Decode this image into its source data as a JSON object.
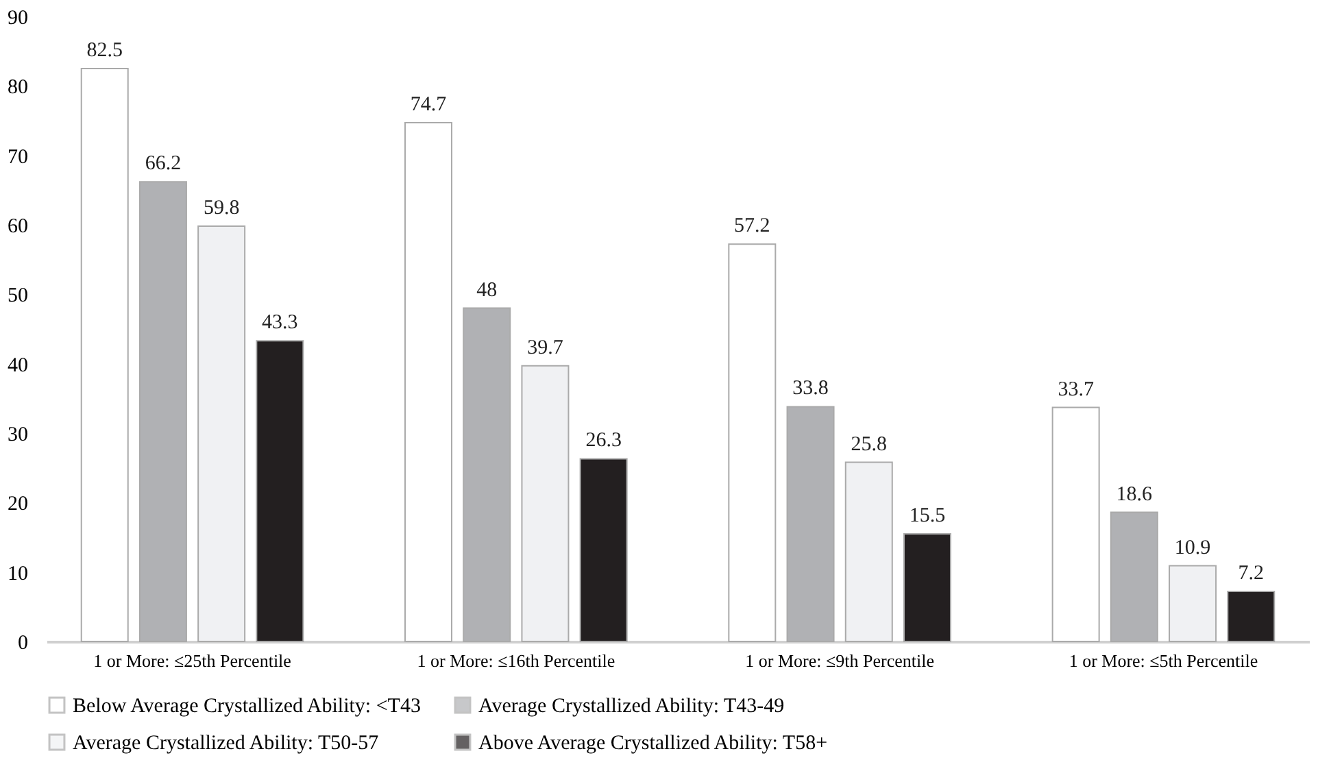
{
  "chart_data": {
    "type": "bar",
    "categories": [
      "1 or More: ≤25th Percentile",
      "1 or More: ≤16th Percentile",
      "1 or More: ≤9th Percentile",
      "1 or More: ≤5th Percentile"
    ],
    "series": [
      {
        "name": "Below Average Crystallized Ability: <T43",
        "color": "#ffffff",
        "values": [
          82.5,
          74.7,
          57.2,
          33.7
        ]
      },
      {
        "name": "Average Crystallized Ability: T43-49",
        "color": "#b0b1b4",
        "values": [
          66.2,
          48,
          33.8,
          18.6
        ]
      },
      {
        "name": "Average Crystallized Ability: T50-57",
        "color": "#f0f1f3",
        "values": [
          59.8,
          39.7,
          25.8,
          10.9
        ]
      },
      {
        "name": "Above Average Crystallized Ability: T58+",
        "color": "#231f20",
        "values": [
          43.3,
          26.3,
          15.5,
          7.2
        ]
      }
    ],
    "ylim": [
      0,
      90
    ],
    "yticks": [
      0,
      10,
      20,
      30,
      40,
      50,
      60,
      70,
      80,
      90
    ],
    "grid": false,
    "legend": "bottom",
    "data_labels": true
  }
}
